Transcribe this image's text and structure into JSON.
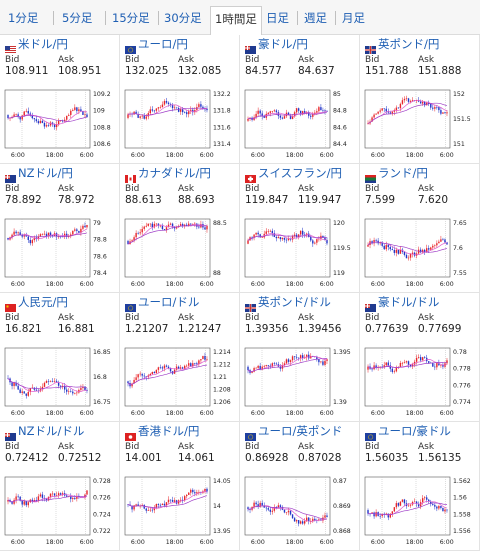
{
  "tabs": [
    {
      "label": "1分足",
      "active": false
    },
    {
      "label": "5分足",
      "active": false
    },
    {
      "label": "15分足",
      "active": false
    },
    {
      "label": "30分足",
      "active": false
    },
    {
      "label": "1時間足",
      "active": true
    },
    {
      "label": "日足",
      "active": false
    },
    {
      "label": "週足",
      "active": false
    },
    {
      "label": "月足",
      "active": false
    }
  ],
  "bid_label": "Bid",
  "ask_label": "Ask",
  "colors": {
    "up": "#e8262b",
    "down": "#2236c8",
    "ma_pink": "#e05ccf",
    "ma_purple": "#a040c8",
    "link": "#1f5fb3"
  },
  "pairs": [
    {
      "name": "米ドル/円",
      "flag": "us-flag",
      "bid": "108.911",
      "ask": "108.951",
      "chart_data": {
        "type": "candlestick",
        "y_ticks": [
          "109.2",
          "109",
          "108.8",
          "108.6"
        ],
        "x_ticks": [
          "6:00",
          "18:00",
          "6:00"
        ]
      }
    },
    {
      "name": "ユーロ/円",
      "flag": "eu-flag",
      "bid": "132.025",
      "ask": "132.085",
      "chart_data": {
        "type": "candlestick",
        "y_ticks": [
          "132.2",
          "131.8",
          "131.6",
          "131.4"
        ],
        "x_ticks": [
          "6:00",
          "18:00",
          "6:00"
        ]
      }
    },
    {
      "name": "豪ドル/円",
      "flag": "au-flag",
      "bid": "84.577",
      "ask": "84.637",
      "chart_data": {
        "type": "candlestick",
        "y_ticks": [
          "85",
          "84.8",
          "84.6",
          "84.4"
        ],
        "x_ticks": [
          "6:00",
          "18:00",
          "6:00"
        ]
      }
    },
    {
      "name": "英ポンド/円",
      "flag": "uk-flag",
      "bid": "151.788",
      "ask": "151.888",
      "chart_data": {
        "type": "candlestick",
        "y_ticks": [
          "152",
          "151.5",
          "151"
        ],
        "x_ticks": [
          "6:00",
          "18:00",
          "6:00"
        ]
      }
    },
    {
      "name": "NZドル/円",
      "flag": "nz-flag",
      "bid": "78.892",
      "ask": "78.972",
      "chart_data": {
        "type": "candlestick",
        "y_ticks": [
          "79",
          "78.8",
          "78.6",
          "78.4"
        ],
        "x_ticks": [
          "6:00",
          "18:00",
          "6:00"
        ]
      }
    },
    {
      "name": "カナダドル/円",
      "flag": "ca-flag",
      "bid": "88.613",
      "ask": "88.693",
      "chart_data": {
        "type": "candlestick",
        "y_ticks": [
          "88.5",
          "88"
        ],
        "x_ticks": [
          "6:00",
          "18:00",
          "6:00"
        ]
      }
    },
    {
      "name": "スイスフラン/円",
      "flag": "ch-flag",
      "bid": "119.847",
      "ask": "119.947",
      "chart_data": {
        "type": "candlestick",
        "y_ticks": [
          "120",
          "119.5",
          "119"
        ],
        "x_ticks": [
          "6:00",
          "18:00",
          "6:00"
        ]
      }
    },
    {
      "name": "ランド/円",
      "flag": "za-flag",
      "bid": "7.599",
      "ask": "7.620",
      "chart_data": {
        "type": "candlestick",
        "y_ticks": [
          "7.65",
          "7.6",
          "7.55"
        ],
        "x_ticks": [
          "6:00",
          "18:00",
          "6:00"
        ]
      }
    },
    {
      "name": "人民元/円",
      "flag": "cn-flag",
      "bid": "16.821",
      "ask": "16.881",
      "chart_data": {
        "type": "candlestick",
        "y_ticks": [
          "16.85",
          "16.8",
          "16.75"
        ],
        "x_ticks": [
          "6:00",
          "18:00",
          "6:00"
        ]
      }
    },
    {
      "name": "ユーロ/ドル",
      "flag": "eu-us-flag",
      "bid": "1.21207",
      "ask": "1.21247",
      "chart_data": {
        "type": "candlestick",
        "y_ticks": [
          "1.214",
          "1.212",
          "1.21",
          "1.208",
          "1.206"
        ],
        "x_ticks": [
          "6:00",
          "18:00",
          "6:00"
        ]
      }
    },
    {
      "name": "英ポンド/ドル",
      "flag": "uk-us-flag",
      "bid": "1.39356",
      "ask": "1.39456",
      "chart_data": {
        "type": "candlestick",
        "y_ticks": [
          "1.395",
          "1.39"
        ],
        "x_ticks": [
          "6:00",
          "18:00",
          "6:00"
        ]
      }
    },
    {
      "name": "豪ドル/ドル",
      "flag": "au-us-flag",
      "bid": "0.77639",
      "ask": "0.77699",
      "chart_data": {
        "type": "candlestick",
        "y_ticks": [
          "0.78",
          "0.778",
          "0.776",
          "0.774"
        ],
        "x_ticks": [
          "6:00",
          "18:00",
          "6:00"
        ]
      }
    },
    {
      "name": "NZドル/ドル",
      "flag": "nz-us-flag",
      "bid": "0.72412",
      "ask": "0.72512",
      "chart_data": {
        "type": "candlestick",
        "y_ticks": [
          "0.728",
          "0.726",
          "0.724",
          "0.722"
        ],
        "x_ticks": [
          "6:00",
          "18:00",
          "6:00"
        ]
      }
    },
    {
      "name": "香港ドル/円",
      "flag": "hk-flag",
      "bid": "14.001",
      "ask": "14.061",
      "chart_data": {
        "type": "candlestick",
        "y_ticks": [
          "14.05",
          "14",
          "13.95"
        ],
        "x_ticks": [
          "6:00",
          "18:00",
          "6:00"
        ]
      }
    },
    {
      "name": "ユーロ/英ポンド",
      "flag": "eu-uk-flag",
      "bid": "0.86928",
      "ask": "0.87028",
      "chart_data": {
        "type": "candlestick",
        "y_ticks": [
          "0.87",
          "0.869",
          "0.868"
        ],
        "x_ticks": [
          "6:00",
          "18:00",
          "6:00"
        ]
      }
    },
    {
      "name": "ユーロ/豪ドル",
      "flag": "eu-au-flag",
      "bid": "1.56035",
      "ask": "1.56135",
      "chart_data": {
        "type": "candlestick",
        "y_ticks": [
          "1.562",
          "1.56",
          "1.558",
          "1.556"
        ],
        "x_ticks": [
          "6:00",
          "18:00",
          "6:00"
        ]
      }
    }
  ]
}
